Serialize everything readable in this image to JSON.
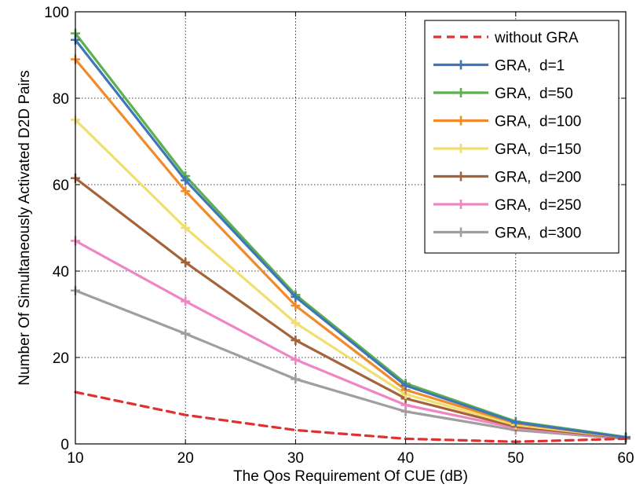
{
  "chart_data": {
    "type": "line",
    "title": "",
    "xlabel": "The Qos Requirement Of CUE (dB)",
    "ylabel": "Number Of Simultaneously Activated D2D Pairs",
    "x": [
      10,
      20,
      30,
      40,
      50,
      60
    ],
    "xlim": [
      10,
      60
    ],
    "ylim": [
      0,
      100
    ],
    "xticks": [
      "10",
      "20",
      "30",
      "40",
      "50",
      "60"
    ],
    "yticks": [
      "0",
      "20",
      "40",
      "60",
      "80",
      "100"
    ],
    "grid": true,
    "legend_position": "top-right",
    "series": [
      {
        "name": "without GRA",
        "color": "#e03030",
        "dashed": true,
        "markers": false,
        "values": [
          12,
          6.7,
          3.2,
          1.2,
          0.5,
          1.2
        ]
      },
      {
        "name": "GRA,  d=1",
        "color": "#3f77b6",
        "dashed": false,
        "markers": true,
        "values": [
          93.5,
          61,
          34,
          13.5,
          5,
          1.5
        ]
      },
      {
        "name": "GRA,  d=50",
        "color": "#5cb04f",
        "dashed": false,
        "markers": true,
        "values": [
          95,
          62,
          34.5,
          14,
          5.2,
          1.6
        ]
      },
      {
        "name": "GRA,  d=100",
        "color": "#f28a2a",
        "dashed": false,
        "markers": true,
        "values": [
          89,
          58.5,
          32,
          12.5,
          4.8,
          1.5
        ]
      },
      {
        "name": "GRA,  d=150",
        "color": "#f0de6e",
        "dashed": false,
        "markers": true,
        "values": [
          75,
          50,
          28,
          11.5,
          4.4,
          1.5
        ]
      },
      {
        "name": "GRA,  d=200",
        "color": "#a5633a",
        "dashed": false,
        "markers": true,
        "values": [
          61.5,
          42,
          24,
          10.5,
          4,
          1.4
        ]
      },
      {
        "name": "GRA,  d=250",
        "color": "#ef86c3",
        "dashed": false,
        "markers": true,
        "values": [
          47,
          33,
          19.5,
          9,
          3.7,
          1.3
        ]
      },
      {
        "name": "GRA,  d=300",
        "color": "#9f9f9f",
        "dashed": false,
        "markers": true,
        "values": [
          35.5,
          25.5,
          15,
          7.5,
          3.2,
          1.2
        ]
      }
    ]
  }
}
